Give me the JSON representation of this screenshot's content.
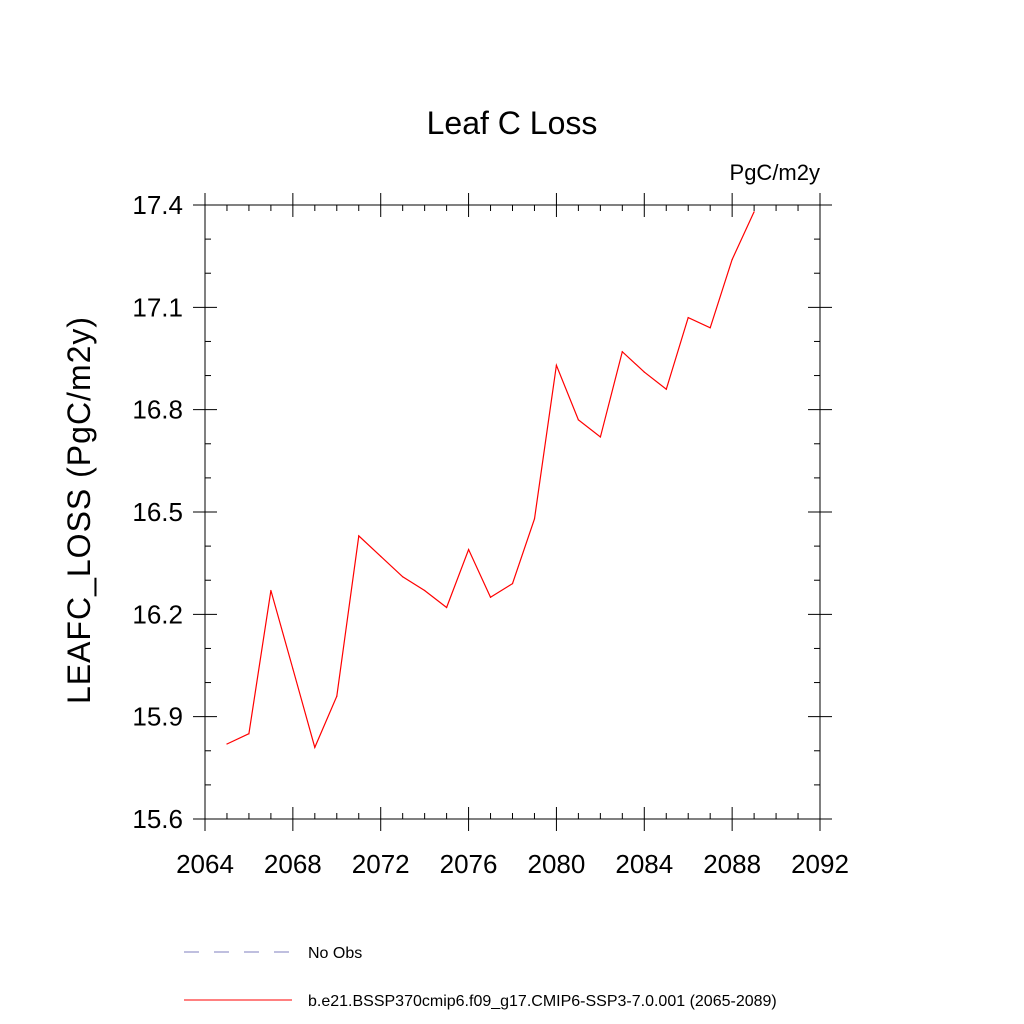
{
  "chart_data": {
    "type": "line",
    "title": "Leaf C Loss",
    "units": "PgC/m2y",
    "xlabel": "",
    "ylabel": "LEAFC_LOSS  (PgC/m2y)",
    "xlim": [
      2064,
      2092
    ],
    "ylim": [
      15.6,
      17.4
    ],
    "xticks": [
      2064,
      2068,
      2072,
      2076,
      2080,
      2084,
      2088,
      2092
    ],
    "yticks": [
      15.6,
      15.9,
      16.2,
      16.5,
      16.8,
      17.1,
      17.4
    ],
    "xtick_labels": [
      "2064",
      "2068",
      "2072",
      "2076",
      "2080",
      "2084",
      "2088",
      "2092"
    ],
    "ytick_labels": [
      "15.6",
      "15.9",
      "16.2",
      "16.5",
      "16.8",
      "17.1",
      "17.4"
    ],
    "series": [
      {
        "name": "b.e21.BSSP370cmip6.f09_g17.CMIP6-SSP3-7.0.001 (2065-2089)",
        "color": "#ff0000",
        "style": "solid",
        "x": [
          2065,
          2066,
          2067,
          2068,
          2069,
          2070,
          2071,
          2072,
          2073,
          2074,
          2075,
          2076,
          2077,
          2078,
          2079,
          2080,
          2081,
          2082,
          2083,
          2084,
          2085,
          2086,
          2087,
          2088,
          2089
        ],
        "values": [
          15.82,
          15.85,
          16.27,
          16.04,
          15.81,
          15.96,
          16.43,
          16.37,
          16.31,
          16.27,
          16.22,
          16.39,
          16.25,
          16.29,
          16.48,
          16.93,
          16.77,
          16.72,
          16.97,
          16.91,
          16.86,
          17.07,
          17.04,
          17.24,
          17.38
        ]
      }
    ],
    "legend": [
      {
        "label": "No Obs",
        "color": "#7f7fbf",
        "style": "dashed"
      },
      {
        "label": "b.e21.BSSP370cmip6.f09_g17.CMIP6-SSP3-7.0.001 (2065-2089)",
        "color": "#ff0000",
        "style": "solid"
      }
    ],
    "legend_position": "bottom"
  }
}
